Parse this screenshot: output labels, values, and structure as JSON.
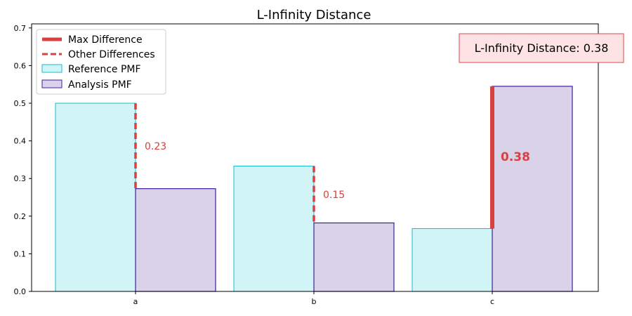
{
  "chart_data": {
    "type": "bar",
    "title": "L-Infinity Distance",
    "categories": [
      "a",
      "b",
      "c"
    ],
    "ylim": [
      0,
      0.71
    ],
    "yticks": [
      0.0,
      0.1,
      0.2,
      0.3,
      0.4,
      0.5,
      0.6,
      0.7
    ],
    "ytick_labels": [
      "0.0",
      "0.1",
      "0.2",
      "0.3",
      "0.4",
      "0.5",
      "0.6",
      "0.7"
    ],
    "grid": false,
    "legend_position": "top-left",
    "series": [
      {
        "name": "Reference PMF",
        "values": [
          0.5,
          0.333,
          0.167
        ],
        "fill": "#d1f4f7",
        "edge": "#17becf"
      },
      {
        "name": "Analysis PMF",
        "values": [
          0.273,
          0.182,
          0.545
        ],
        "fill": "#dad2e9",
        "edge": "#3f1f97"
      }
    ],
    "differences": [
      {
        "category": "a",
        "label": "0.23",
        "is_max": false
      },
      {
        "category": "b",
        "label": "0.15",
        "is_max": false
      },
      {
        "category": "c",
        "label": "0.38",
        "is_max": true
      }
    ],
    "legend": {
      "max_label": "Max Difference",
      "other_label": "Other Differences",
      "reference_label": "Reference PMF",
      "analysis_label": "Analysis PMF"
    },
    "info_box": "L-Infinity Distance: 0.38",
    "diff_color": "#d94040",
    "info_fill": "#fde3e3",
    "info_edge": "#d94a50"
  }
}
